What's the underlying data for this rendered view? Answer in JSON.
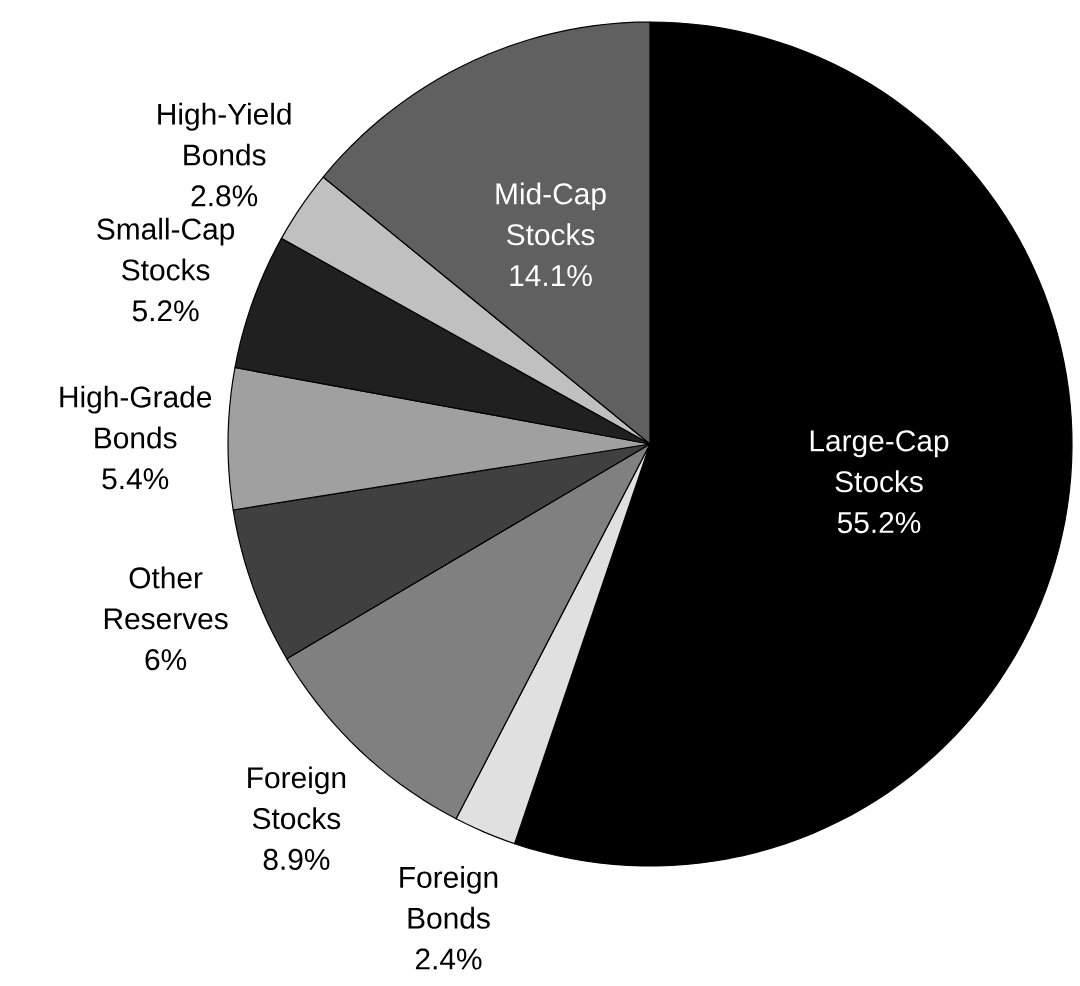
{
  "chart_data": {
    "type": "pie",
    "categories": [
      "Large-Cap Stocks",
      "Foreign Bonds",
      "Foreign Stocks",
      "Other Reserves",
      "High-Grade Bonds",
      "Small-Cap Stocks",
      "High-Yield Bonds",
      "Mid-Cap Stocks"
    ],
    "values": [
      55.2,
      2.4,
      8.9,
      6,
      5.4,
      5.2,
      2.8,
      14.1
    ],
    "colors": [
      "#000000",
      "#e0e0e0",
      "#808080",
      "#404040",
      "#a0a0a0",
      "#202020",
      "#c0c0c0",
      "#606060"
    ],
    "value_labels": [
      "55.2%",
      "2.4%",
      "8.9%",
      "6%",
      "5.4%",
      "5.2%",
      "2.8%",
      "14.1%"
    ]
  }
}
